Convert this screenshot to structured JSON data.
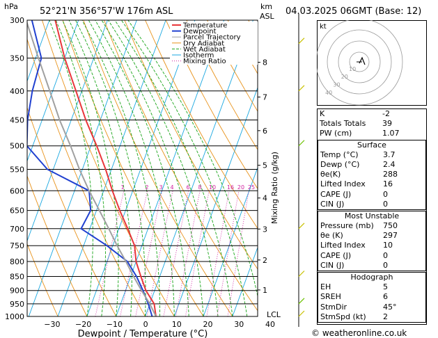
{
  "header": {
    "pressure_unit": "hPa",
    "location": "52°21'N  356°57'W  176m  ASL",
    "km": "km",
    "asl": "ASL",
    "datetime": "04.03.2025  06GMT  (Base: 12)"
  },
  "credit": "© weatheronline.co.uk",
  "chart_data": {
    "type": "line",
    "xlabel": "Dewpoint / Temperature (°C)",
    "ylabel": "Mixing Ratio (g/kg)",
    "x_ticks": [
      -30,
      -20,
      -10,
      0,
      10,
      20,
      30,
      40
    ],
    "y_ticks": [
      300,
      350,
      400,
      450,
      500,
      550,
      600,
      650,
      700,
      750,
      800,
      850,
      900,
      950,
      1000
    ],
    "ylim": [
      1000,
      300
    ],
    "km_ticks": [
      {
        "km": 8,
        "p": 356
      },
      {
        "km": 7,
        "p": 410
      },
      {
        "km": 6,
        "p": 470
      },
      {
        "km": 5,
        "p": 541
      },
      {
        "km": 4,
        "p": 618
      },
      {
        "km": 3,
        "p": 701
      },
      {
        "km": 2,
        "p": 795
      },
      {
        "km": 1,
        "p": 898
      }
    ],
    "lcl_label": "LCL",
    "lcl_p": 991,
    "mixing_ratio_labels": [
      "1",
      "2",
      "3",
      "4",
      "6",
      "8",
      "10",
      "16",
      "20",
      "25"
    ],
    "legend": [
      "Temperature",
      "Dewpoint",
      "Parcel Trajectory",
      "Dry Adiabat",
      "Wet Adiabat",
      "Isotherm",
      "Mixing Ratio"
    ],
    "series": [
      {
        "name": "Temperature",
        "color": "#e8363a",
        "points": [
          [
            1000,
            3.7
          ],
          [
            950,
            1.5
          ],
          [
            900,
            -3
          ],
          [
            850,
            -6.5
          ],
          [
            800,
            -10
          ],
          [
            750,
            -12.5
          ],
          [
            700,
            -17
          ],
          [
            650,
            -22
          ],
          [
            600,
            -27
          ],
          [
            550,
            -32
          ],
          [
            500,
            -38
          ],
          [
            450,
            -45
          ],
          [
            400,
            -52
          ],
          [
            350,
            -60
          ],
          [
            300,
            -68
          ]
        ]
      },
      {
        "name": "Dewpoint",
        "color": "#2040d0",
        "points": [
          [
            1000,
            2.4
          ],
          [
            950,
            -0.5
          ],
          [
            900,
            -4
          ],
          [
            850,
            -8
          ],
          [
            800,
            -13
          ],
          [
            750,
            -22
          ],
          [
            700,
            -33
          ],
          [
            650,
            -32
          ],
          [
            600,
            -35
          ],
          [
            550,
            -52
          ],
          [
            500,
            -62
          ],
          [
            450,
            -65
          ],
          [
            400,
            -67
          ],
          [
            350,
            -68
          ],
          [
            300,
            -76
          ]
        ]
      },
      {
        "name": "Parcel Trajectory",
        "color": "#a0a0a0",
        "points": [
          [
            1000,
            3.7
          ],
          [
            950,
            0
          ],
          [
            900,
            -4.5
          ],
          [
            850,
            -9
          ],
          [
            800,
            -13.5
          ],
          [
            750,
            -18.5
          ],
          [
            700,
            -23.5
          ],
          [
            650,
            -29
          ],
          [
            600,
            -35
          ],
          [
            550,
            -41
          ],
          [
            500,
            -47
          ],
          [
            450,
            -54
          ],
          [
            400,
            -61
          ],
          [
            350,
            -69
          ],
          [
            300,
            -78
          ]
        ]
      }
    ]
  },
  "hodograph": {
    "label": "kt",
    "ring_labels": [
      "10",
      "20",
      "30",
      "40"
    ]
  },
  "indices": [
    {
      "label": "K",
      "value": "-2"
    },
    {
      "label": "Totals Totals",
      "value": "39"
    },
    {
      "label": "PW (cm)",
      "value": "1.07"
    }
  ],
  "surface": {
    "title": "Surface",
    "rows": [
      {
        "label": "Temp (°C)",
        "value": "3.7"
      },
      {
        "label": "Dewp (°C)",
        "value": "2.4"
      },
      {
        "label": "θe(K)",
        "value": "288"
      },
      {
        "label": "Lifted Index",
        "value": "16"
      },
      {
        "label": "CAPE (J)",
        "value": "0"
      },
      {
        "label": "CIN (J)",
        "value": "0"
      }
    ]
  },
  "most_unstable": {
    "title": "Most Unstable",
    "rows": [
      {
        "label": "Pressure (mb)",
        "value": "750"
      },
      {
        "label": "θe (K)",
        "value": "297"
      },
      {
        "label": "Lifted Index",
        "value": "10"
      },
      {
        "label": "CAPE (J)",
        "value": "0"
      },
      {
        "label": "CIN (J)",
        "value": "0"
      }
    ]
  },
  "hodograph_table": {
    "title": "Hodograph",
    "rows": [
      {
        "label": "EH",
        "value": "5"
      },
      {
        "label": "SREH",
        "value": "6"
      },
      {
        "label": "StmDir",
        "value": "45°"
      },
      {
        "label": "StmSpd (kt)",
        "value": "2"
      }
    ]
  },
  "colors": {
    "temperature": "#e8363a",
    "dewpoint": "#2040d0",
    "parcel": "#a0a0a0",
    "dry_adiabat": "#e8921a",
    "wet_adiabat": "#1aa51a",
    "isotherm": "#19a7e0",
    "mixing_ratio": "#d020a0"
  }
}
